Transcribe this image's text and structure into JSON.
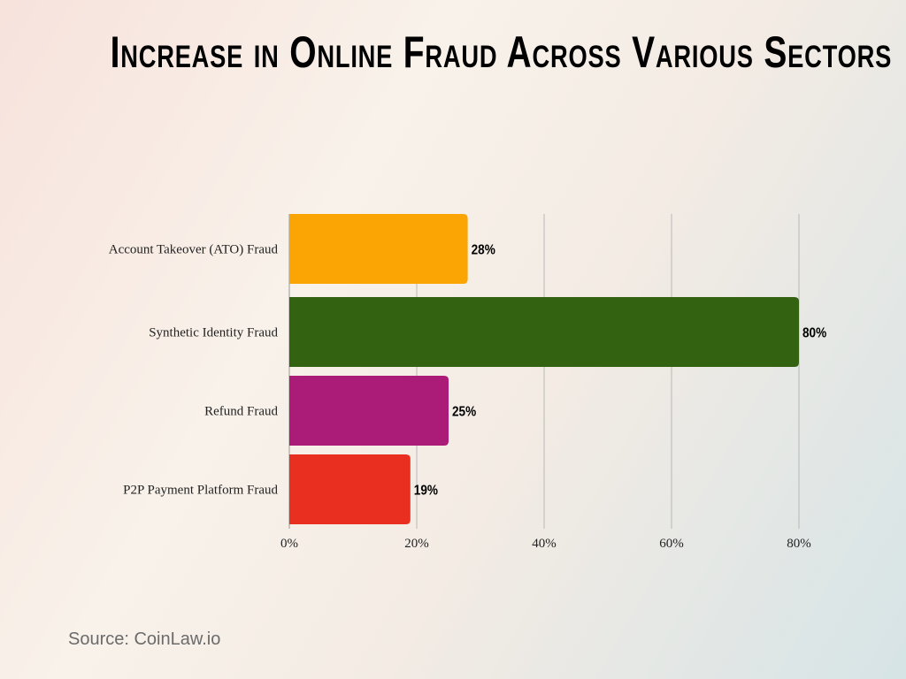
{
  "chart_data": {
    "type": "bar",
    "orientation": "horizontal",
    "title": "Increase in Online Fraud Across Various Sectors",
    "categories": [
      "Account Takeover (ATO) Fraud",
      "Synthetic Identity Fraud",
      "Refund Fraud",
      "P2P Payment Platform Fraud"
    ],
    "values": [
      28,
      80,
      25,
      19
    ],
    "data_labels": [
      "28%",
      "80%",
      "25%",
      "19%"
    ],
    "colors": [
      "#fba504",
      "#336210",
      "#ab1c78",
      "#e93020"
    ],
    "xlim": [
      0,
      80
    ],
    "x_ticks": [
      "0%",
      "20%",
      "40%",
      "60%",
      "80%"
    ],
    "grid": true,
    "xlabel": "",
    "ylabel": ""
  },
  "source": "Source: CoinLaw.io"
}
